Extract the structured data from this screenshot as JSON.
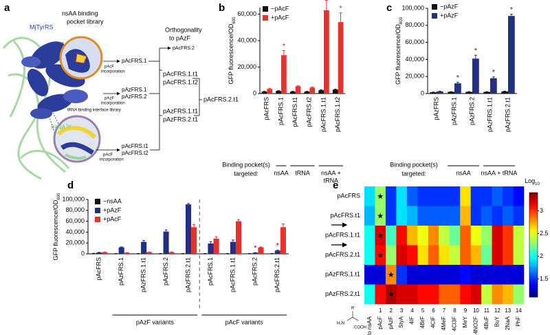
{
  "diagram": {
    "label": "a",
    "protein": "MjTyrRS",
    "trna": "tRNA",
    "trna_sup": "Tyr",
    "pocket_library": [
      "nsAA binding",
      "pocket library"
    ],
    "interface_library": "tRNA binding interface library",
    "incorporation": [
      [
        "pAcF",
        "incorporation"
      ],
      [
        "pAzF",
        "incorporation"
      ],
      [
        "pAcF",
        "incorporation"
      ]
    ],
    "stage1": [
      [
        "pAcFRS.1"
      ],
      [
        "pAzFRS.1",
        "pAzFRS.2"
      ],
      [
        "pAcFRS.t1",
        "pAcFRS.t2"
      ]
    ],
    "orthogonality": [
      "Orthogonality",
      "to pAzF"
    ],
    "stage2": [
      [
        "pAcFRS.2"
      ],
      [
        "pAcFRS.1.t1",
        "pAcFRS.1.t2"
      ],
      [
        "pAzFRS.1.t1",
        "pAzFRS.2.t1"
      ]
    ],
    "final": "pAcFRS.2.t1"
  },
  "chart_data": [
    {
      "type": "bar",
      "panel": "b",
      "y_label": "GFP fluorescence/OD",
      "y_label_sub": "600",
      "categories": [
        "pAcFRS",
        "pAcFRS.1",
        "pAcFRS.t1",
        "pAcFRS.t2",
        "pAcFRS.1.t1",
        "pAcFRS.1.t2"
      ],
      "series": [
        {
          "name": "−pAcF",
          "color": "#111111",
          "values": [
            1500,
            2000,
            1500,
            1500,
            2500,
            3000
          ],
          "errors": [
            200,
            200,
            200,
            200,
            300,
            300
          ]
        },
        {
          "name": "+pAcF",
          "color": "#e8302c",
          "values": [
            3500,
            29000,
            5500,
            4500,
            63000,
            54000
          ],
          "errors": [
            500,
            3500,
            400,
            400,
            7500,
            7000
          ],
          "annotations": [
            null,
            "*",
            null,
            null,
            "*",
            "*"
          ]
        }
      ],
      "ylim": [
        0,
        65000
      ],
      "yticks": [
        0,
        {
          "value": 20000,
          "label": "20,000"
        },
        {
          "value": 40000,
          "label": "40,000"
        },
        {
          "value": 60000,
          "label": "60,000"
        }
      ],
      "group_title": [
        "Binding pocket(s)",
        "targeted:"
      ],
      "groups": [
        {
          "lines": [
            "nsAA"
          ],
          "span": [
            1,
            1
          ]
        },
        {
          "lines": [
            "tRNA"
          ],
          "span": [
            2,
            3
          ]
        },
        {
          "lines": [
            "nsAA +",
            "tRNA"
          ],
          "span": [
            4,
            5
          ]
        }
      ]
    },
    {
      "type": "bar",
      "panel": "c",
      "y_label": "GFP fluorescence/OD",
      "y_label_sub": "600",
      "categories": [
        "pAzFRS",
        "pAzFRS.1",
        "pAzFRS.2",
        "pAzFRS.1.t1",
        "pAzFRS.2.t1"
      ],
      "series": [
        {
          "name": "−pAzF",
          "color": "#111111",
          "values": [
            1500,
            2000,
            2000,
            2000,
            2500
          ],
          "errors": [
            200,
            200,
            200,
            200,
            300
          ]
        },
        {
          "name": "+pAzF",
          "color": "#232f82",
          "values": [
            2500,
            12000,
            41000,
            18000,
            91000
          ],
          "errors": [
            300,
            1200,
            4000,
            1500,
            2000
          ],
          "annotations": [
            null,
            "*",
            "*",
            "*",
            "*"
          ]
        }
      ],
      "ylim": [
        0,
        100000
      ],
      "yticks": [
        0,
        {
          "value": 20000,
          "label": "20,000"
        },
        {
          "value": 40000,
          "label": "40,000"
        },
        {
          "value": 60000,
          "label": "60,000"
        },
        {
          "value": 80000,
          "label": "80,000"
        },
        {
          "value": 100000,
          "label": "100,000"
        }
      ],
      "group_title": [
        "Binding pocket(s)",
        "targeted:"
      ],
      "groups": [
        {
          "lines": [
            "nsAA"
          ],
          "span": [
            1,
            2
          ]
        },
        {
          "lines": [
            "nsAA + tRNA"
          ],
          "span": [
            3,
            4
          ]
        }
      ]
    },
    {
      "type": "bar",
      "panel": "d",
      "y_label": "GFP fluorescence/OD",
      "y_label_sub": "600",
      "categories": [
        "pAcFRS",
        "pAzFRS.1",
        "pAzFRS.1.t1",
        "pAzFRS.2",
        "pAzFRS.2.t1",
        "pAcFRS.1",
        "pAcFRS.1.t1",
        "pAcFRS.2",
        "pAcFRS.2.t1"
      ],
      "series": [
        {
          "name": "−nsAA",
          "color": "#111111",
          "values": [
            800,
            600,
            600,
            600,
            600,
            600,
            600,
            600,
            600
          ],
          "errors": [
            100,
            100,
            100,
            100,
            100,
            100,
            100,
            100,
            100
          ]
        },
        {
          "name": "+pAzF",
          "color": "#232f82",
          "values": [
            2500,
            12000,
            22000,
            41000,
            91000,
            19000,
            22000,
            2000,
            6000
          ],
          "errors": [
            300,
            800,
            2500,
            3000,
            1500,
            3500,
            3500,
            300,
            800
          ],
          "annotations": [
            null,
            null,
            null,
            null,
            null,
            null,
            null,
            "*",
            "*"
          ]
        },
        {
          "name": "+pAcF",
          "color": "#e8302c",
          "values": [
            3000,
            2000,
            3000,
            3000,
            49000,
            28000,
            60000,
            12000,
            49000
          ],
          "errors": [
            300,
            300,
            400,
            500,
            5000,
            3500,
            3000,
            800,
            6000
          ]
        }
      ],
      "ylim": [
        0,
        100000
      ],
      "yticks": [
        0,
        {
          "value": 20000,
          "label": "20,000"
        },
        {
          "value": 40000,
          "label": "40,000"
        },
        {
          "value": 60000,
          "label": "60,000"
        },
        {
          "value": 80000,
          "label": "80,000"
        },
        {
          "value": 100000,
          "label": "100,000"
        }
      ],
      "groups": [
        {
          "lines": [
            "pAzF variants"
          ],
          "span": [
            1,
            4
          ]
        },
        {
          "lines": [
            "pAcF variants"
          ],
          "span": [
            5,
            8
          ]
        }
      ],
      "group_divider": true
    },
    {
      "type": "heatmap",
      "panel": "e",
      "rows": [
        "pAcFRS",
        "pAcFRS.t1",
        "pAcFRS.1.t1",
        "pAcFRS.2.t1",
        "pAzFRS.1.t1",
        "pAzFRS.2.t1"
      ],
      "columns": [
        "No nsAA",
        "pAcF",
        "pAzF",
        "StyA",
        "4IF",
        "4BrF",
        "4ClF",
        "4MeF",
        "4Cl3F",
        "MeY",
        "4NO2F",
        "4BuF",
        "BuY",
        "2NaA",
        "PhF"
      ],
      "column_numbers": [
        null,
        1,
        2,
        3,
        4,
        5,
        6,
        7,
        8,
        9,
        10,
        11,
        12,
        13,
        14
      ],
      "values": [
        [
          1.9,
          2.3,
          1.5,
          1.9,
          1.6,
          1.5,
          1.5,
          1.5,
          1.5,
          2.6,
          1.5,
          1.5,
          1.6,
          1.5,
          1.4
        ],
        [
          1.8,
          2.3,
          1.5,
          1.9,
          1.8,
          1.6,
          1.6,
          1.6,
          1.6,
          2.7,
          1.5,
          1.6,
          1.5,
          1.6,
          1.5
        ],
        [
          2.0,
          3.2,
          2.1,
          3.1,
          2.7,
          2.5,
          2.8,
          2.4,
          2.2,
          2.9,
          2.5,
          2.3,
          3.2,
          3.0,
          2.4
        ],
        [
          2.0,
          3.1,
          2.3,
          3.2,
          3.1,
          2.6,
          2.9,
          2.6,
          2.4,
          2.9,
          2.7,
          2.2,
          3.2,
          3.0,
          2.4
        ],
        [
          1.3,
          1.3,
          2.8,
          1.5,
          1.3,
          1.3,
          1.3,
          1.3,
          1.3,
          1.4,
          1.3,
          1.3,
          1.3,
          1.3,
          1.3
        ],
        [
          2.0,
          3.1,
          3.3,
          3.2,
          3.2,
          3.1,
          3.1,
          2.9,
          2.9,
          3.1,
          3.2,
          2.4,
          2.8,
          2.7,
          2.3
        ]
      ],
      "annotations": [
        {
          "text": "★",
          "row": 0,
          "column": 1
        },
        {
          "text": "★",
          "row": 1,
          "column": 1
        },
        {
          "text": "★",
          "row": 2,
          "column": 1
        },
        {
          "text": "★",
          "row": 3,
          "column": 1
        },
        {
          "text": "★",
          "row": 4,
          "column": 2
        },
        {
          "text": "★",
          "row": 5,
          "column": 2
        }
      ],
      "colormap": "jet",
      "zlim": [
        1.1,
        3.4
      ],
      "zticks": [
        1.5,
        2,
        2.5,
        3
      ],
      "colorbar_label": "Log",
      "colorbar_label_sub": "10",
      "structure_labels": [
        "R",
        "H₂N",
        "COOH"
      ]
    }
  ]
}
